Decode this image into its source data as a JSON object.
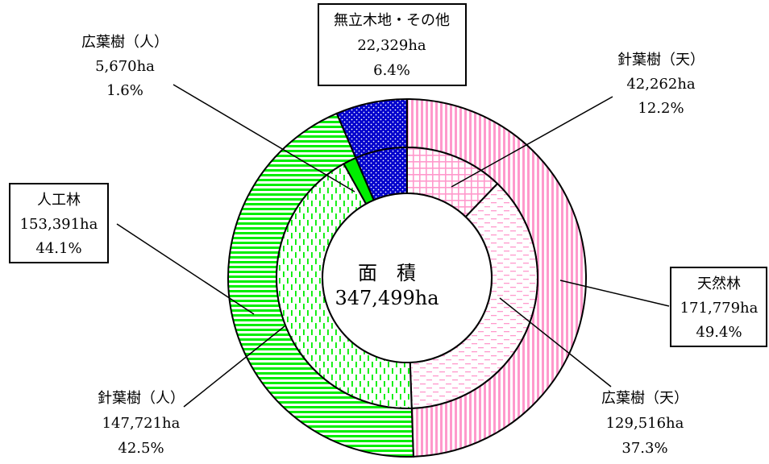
{
  "chart_data": {
    "type": "pie",
    "center_label": [
      "面　積",
      "347,499ha"
    ],
    "total": 347499,
    "unit": "ha",
    "outer_ring": [
      {
        "name": "天然林",
        "value": 171779,
        "percent": "49.4%",
        "color": "#ff99cc",
        "pattern": "vlines-pink"
      },
      {
        "name": "人工林",
        "value": 153391,
        "percent": "44.1%",
        "color": "#00ee00",
        "pattern": "hlines-green"
      },
      {
        "name": "無立木地・その他",
        "value": 22329,
        "percent": "6.4%",
        "color": "#0000cc",
        "pattern": "dots-blue"
      }
    ],
    "inner_ring": [
      {
        "name": "針葉樹（天）",
        "value": 42262,
        "percent": "12.2%",
        "color": "#ff99cc",
        "pattern": "grid-pink"
      },
      {
        "name": "広葉樹（天）",
        "value": 129516,
        "percent": "37.3%",
        "color": "#ff99cc",
        "pattern": "dash-pink"
      },
      {
        "name": "針葉樹（人）",
        "value": 147721,
        "percent": "42.5%",
        "color": "#00ee00",
        "pattern": "vdash-green"
      },
      {
        "name": "広葉樹（人）",
        "value": 5670,
        "percent": "1.6%",
        "color": "#00ee00",
        "pattern": "solid-green"
      },
      {
        "name": "無立木地・その他",
        "value": 22329,
        "percent": "6.4%",
        "color": "#0000cc",
        "pattern": "dots-blue"
      }
    ]
  },
  "labels": {
    "tennen": {
      "lines": [
        "天然林",
        "171,779ha",
        "49.4%"
      ]
    },
    "jinko": {
      "lines": [
        "人工林",
        "153,391ha",
        "44.1%"
      ]
    },
    "muritsu": {
      "lines": [
        "無立木地・その他",
        "22,329ha",
        "6.4%"
      ]
    },
    "shinyo_ten": {
      "lines": [
        "針葉樹（天）",
        "42,262ha",
        "12.2%"
      ]
    },
    "koyo_ten": {
      "lines": [
        "広葉樹（天）",
        "129,516ha",
        "37.3%"
      ]
    },
    "shinyo_jin": {
      "lines": [
        "針葉樹（人）",
        "147,721ha",
        "42.5%"
      ]
    },
    "koyo_jin": {
      "lines": [
        "広葉樹（人）",
        "5,670ha",
        "1.6%"
      ]
    }
  }
}
